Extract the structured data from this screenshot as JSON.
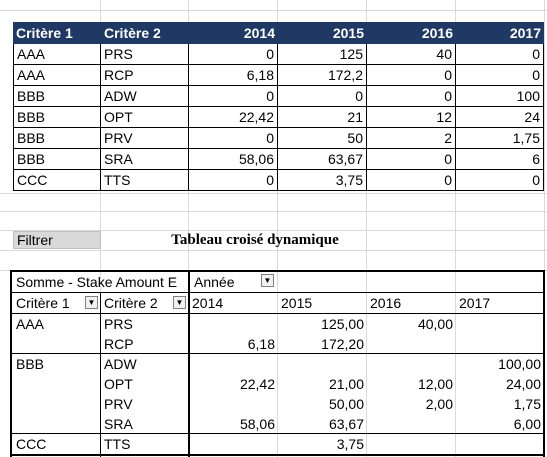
{
  "top_table": {
    "headers": [
      "Critère 1",
      "Critère 2",
      "2014",
      "2015",
      "2016",
      "2017"
    ],
    "rows": [
      [
        "AAA",
        "PRS",
        "0",
        "125",
        "40",
        "0"
      ],
      [
        "AAA",
        "RCP",
        "6,18",
        "172,2",
        "0",
        "0"
      ],
      [
        "BBB",
        "ADW",
        "0",
        "0",
        "0",
        "100"
      ],
      [
        "BBB",
        "OPT",
        "22,42",
        "21",
        "12",
        "24"
      ],
      [
        "BBB",
        "PRV",
        "0",
        "50",
        "2",
        "1,75"
      ],
      [
        "BBB",
        "SRA",
        "58,06",
        "63,67",
        "0",
        "6"
      ],
      [
        "CCC",
        "TTS",
        "0",
        "3,75",
        "0",
        "0"
      ]
    ]
  },
  "filter_button": {
    "label": "Filtrer"
  },
  "pivot_title": "Tableau croisé dynamique",
  "pivot": {
    "value_field": "Somme - Stake Amount E",
    "column_field": "Année",
    "row_field_1": "Critère 1",
    "row_field_2": "Critère 2",
    "years": [
      "2014",
      "2015",
      "2016",
      "2017"
    ],
    "rows": [
      [
        "AAA",
        "PRS",
        "",
        "125,00",
        "40,00",
        ""
      ],
      [
        "",
        "RCP",
        "6,18",
        "172,20",
        "",
        ""
      ],
      [
        "BBB",
        "ADW",
        "",
        "",
        "",
        "100,00"
      ],
      [
        "",
        "OPT",
        "22,42",
        "21,00",
        "12,00",
        "24,00"
      ],
      [
        "",
        "PRV",
        "",
        "50,00",
        "2,00",
        "1,75"
      ],
      [
        "",
        "SRA",
        "58,06",
        "63,67",
        "",
        "6,00"
      ],
      [
        "CCC",
        "TTS",
        "",
        "3,75",
        "",
        ""
      ]
    ]
  },
  "colors": {
    "header_bg": "#1f3864",
    "header_text": "#ffffff",
    "gridline": "#d9d9d9"
  }
}
